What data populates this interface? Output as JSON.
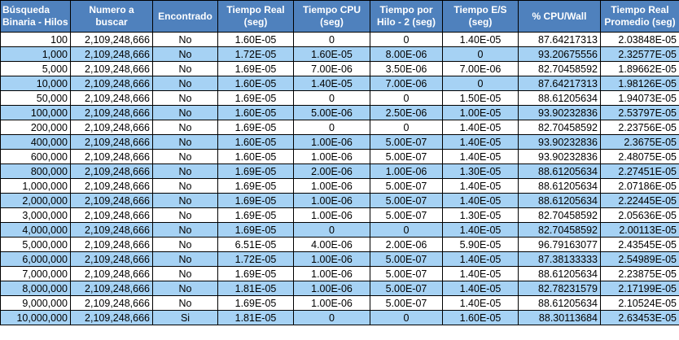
{
  "headers": [
    {
      "line1": "Búsqueda",
      "line2": "Binaria - Hilos"
    },
    {
      "line1": "Numero a",
      "line2": "buscar"
    },
    {
      "line1": "Encontrado",
      "line2": ""
    },
    {
      "line1": "Tiempo Real",
      "line2": "(seg)"
    },
    {
      "line1": "Tiempo CPU",
      "line2": "(seg)"
    },
    {
      "line1": "Tiempo por",
      "line2": "Hilo - 2 (seg)"
    },
    {
      "line1": "Tiempo E/S",
      "line2": "(seg)"
    },
    {
      "line1": "% CPU/Wall",
      "line2": ""
    },
    {
      "line1": "Tiempo Real",
      "line2": "Promedio (seg)"
    }
  ],
  "rows": [
    [
      "100",
      "2,109,248,666",
      "No",
      "1.60E-05",
      "0",
      "0",
      "1.40E-05",
      "87.64217313",
      "2.03848E-05"
    ],
    [
      "1,000",
      "2,109,248,666",
      "No",
      "1.72E-05",
      "1.60E-05",
      "8.00E-06",
      "0",
      "93.20675556",
      "2.32577E-05"
    ],
    [
      "5,000",
      "2,109,248,666",
      "No",
      "1.69E-05",
      "7.00E-06",
      "3.50E-06",
      "7.00E-06",
      "82.70458592",
      "1.89662E-05"
    ],
    [
      "10,000",
      "2,109,248,666",
      "No",
      "1.60E-05",
      "1.40E-05",
      "7.00E-06",
      "0",
      "87.64217313",
      "1.98126E-05"
    ],
    [
      "50,000",
      "2,109,248,666",
      "No",
      "1.69E-05",
      "0",
      "0",
      "1.50E-05",
      "88.61205634",
      "1.94073E-05"
    ],
    [
      "100,000",
      "2,109,248,666",
      "No",
      "1.60E-05",
      "5.00E-06",
      "2.50E-06",
      "1.00E-05",
      "93.90232836",
      "2.53797E-05"
    ],
    [
      "200,000",
      "2,109,248,666",
      "No",
      "1.69E-05",
      "0",
      "0",
      "1.40E-05",
      "82.70458592",
      "2.23756E-05"
    ],
    [
      "400,000",
      "2,109,248,666",
      "No",
      "1.60E-05",
      "1.00E-06",
      "5.00E-07",
      "1.40E-05",
      "93.90232836",
      "2.3675E-05"
    ],
    [
      "600,000",
      "2,109,248,666",
      "No",
      "1.60E-05",
      "1.00E-06",
      "5.00E-07",
      "1.40E-05",
      "93.90232836",
      "2.48075E-05"
    ],
    [
      "800,000",
      "2,109,248,666",
      "No",
      "1.69E-05",
      "2.00E-06",
      "1.00E-06",
      "1.30E-05",
      "88.61205634",
      "2.27451E-05"
    ],
    [
      "1,000,000",
      "2,109,248,666",
      "No",
      "1.69E-05",
      "1.00E-06",
      "5.00E-07",
      "1.40E-05",
      "88.61205634",
      "2.07186E-05"
    ],
    [
      "2,000,000",
      "2,109,248,666",
      "No",
      "1.69E-05",
      "1.00E-06",
      "5.00E-07",
      "1.40E-05",
      "88.61205634",
      "2.22445E-05"
    ],
    [
      "3,000,000",
      "2,109,248,666",
      "No",
      "1.69E-05",
      "1.00E-06",
      "5.00E-07",
      "1.30E-05",
      "82.70458592",
      "2.05636E-05"
    ],
    [
      "4,000,000",
      "2,109,248,666",
      "No",
      "1.69E-05",
      "0",
      "0",
      "1.40E-05",
      "82.70458592",
      "2.00113E-05"
    ],
    [
      "5,000,000",
      "2,109,248,666",
      "No",
      "6.51E-05",
      "4.00E-06",
      "2.00E-06",
      "5.90E-05",
      "96.79163077",
      "2.43545E-05"
    ],
    [
      "6,000,000",
      "2,109,248,666",
      "No",
      "1.72E-05",
      "1.00E-06",
      "5.00E-07",
      "1.40E-05",
      "87.38133333",
      "2.54989E-05"
    ],
    [
      "7,000,000",
      "2,109,248,666",
      "No",
      "1.69E-05",
      "1.00E-06",
      "5.00E-07",
      "1.40E-05",
      "88.61205634",
      "2.23875E-05"
    ],
    [
      "8,000,000",
      "2,109,248,666",
      "No",
      "1.81E-05",
      "1.00E-06",
      "5.00E-07",
      "1.40E-05",
      "82.78231579",
      "2.17199E-05"
    ],
    [
      "9,000,000",
      "2,109,248,666",
      "No",
      "1.69E-05",
      "1.00E-06",
      "5.00E-07",
      "1.40E-05",
      "88.61205634",
      "2.10524E-05"
    ],
    [
      "10,000,000",
      "2,109,248,666",
      "Si",
      "1.81E-05",
      "0",
      "0",
      "1.60E-05",
      "88.30113684",
      "2.63453E-05"
    ]
  ],
  "colors": {
    "header_bg": "#4f81bd",
    "header_text": "#ffffff",
    "band_bg": "#a6d2f4",
    "row_bg": "#ffffff",
    "grid": "#000000"
  }
}
